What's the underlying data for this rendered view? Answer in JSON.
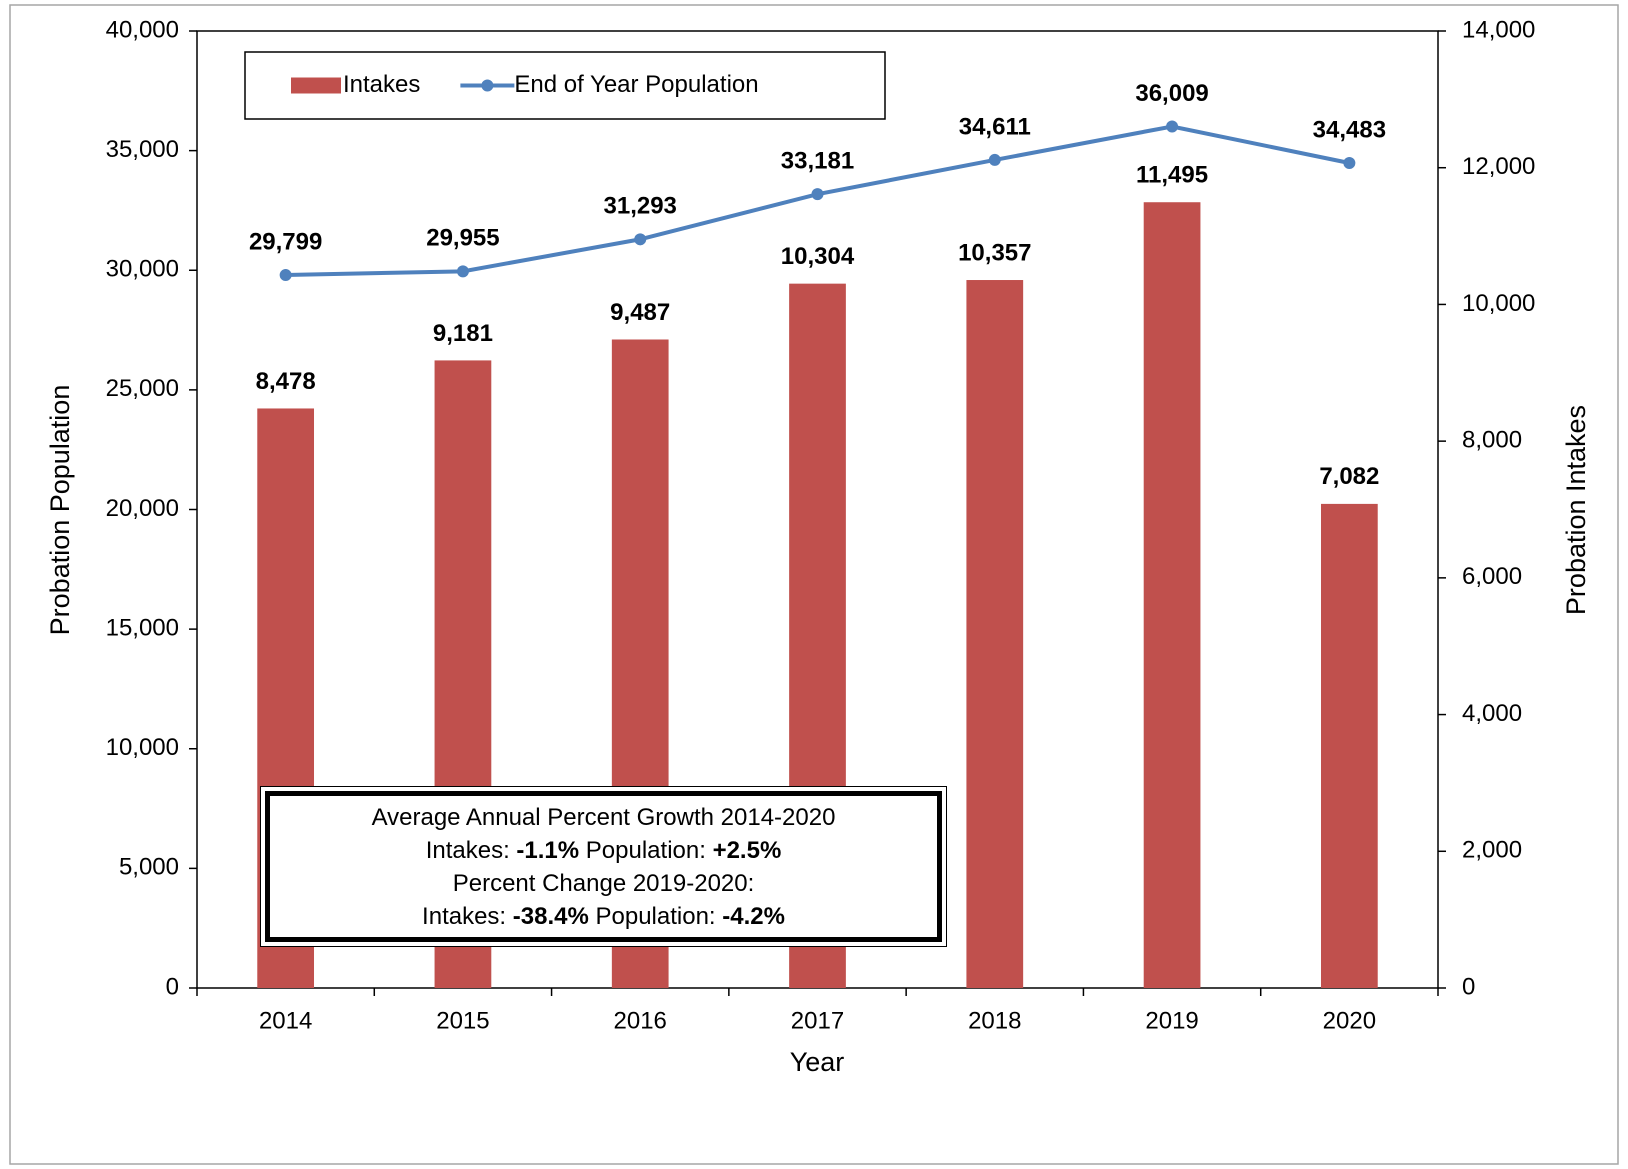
{
  "chart_data": {
    "type": "bar",
    "categories": [
      "2014",
      "2015",
      "2016",
      "2017",
      "2018",
      "2019",
      "2020"
    ],
    "series": [
      {
        "name": "Intakes",
        "type": "bar",
        "color": "#c0504d",
        "axis": "y2",
        "values": [
          8478,
          9181,
          9487,
          10304,
          10357,
          11495,
          7082
        ],
        "value_labels": [
          "8,478",
          "9,181",
          "9,487",
          "10,304",
          "10,357",
          "11,495",
          "7,082"
        ]
      },
      {
        "name": "End of Year Population",
        "type": "line",
        "color": "#4f81bd",
        "values": [
          29799,
          29955,
          31293,
          33181,
          34611,
          36009,
          34483
        ],
        "value_labels": [
          "29,799",
          "29,955",
          "31,293",
          "33,181",
          "34,611",
          "36,009",
          "34,483"
        ]
      }
    ],
    "xlabel": "Year",
    "ylabel": "Probation Population",
    "y2label": "Probation Intakes",
    "ylim": [
      0,
      40000
    ],
    "yticks": [
      0,
      {
        "value": 5000,
        "label": "5,000"
      },
      {
        "value": 10000,
        "label": "10,000"
      },
      {
        "value": 15000,
        "label": "15,000"
      },
      {
        "value": 20000,
        "label": "20,000"
      },
      {
        "value": 25000,
        "label": "25,000"
      },
      {
        "value": 30000,
        "label": "30,000"
      },
      {
        "value": 35000,
        "label": "35,000"
      },
      {
        "value": 40000,
        "label": "40,000"
      }
    ],
    "y2lim": [
      0,
      14000
    ],
    "y2ticks": [
      0,
      {
        "value": 2000,
        "label": "2,000"
      },
      {
        "value": 4000,
        "label": "4,000"
      },
      {
        "value": 6000,
        "label": "6,000"
      },
      {
        "value": 8000,
        "label": "8,000"
      },
      {
        "value": 10000,
        "label": "10,000"
      },
      {
        "value": 12000,
        "label": "12,000"
      },
      {
        "value": 14000,
        "label": "14,000"
      }
    ],
    "grid": false,
    "legend": "top-left",
    "annotation": {
      "lines": [
        [
          {
            "text": "Average Annual Percent Growth 2014-2020"
          }
        ],
        [
          {
            "text": "Intakes:"
          },
          {
            "text": "-1.1%",
            "bold": true
          },
          {
            "text": "Population:"
          },
          {
            "text": "+2.5%",
            "bold": true
          }
        ],
        [
          {
            "text": "Percent Change 2019-2020:"
          }
        ],
        [
          {
            "text": "Intakes:"
          },
          {
            "text": "-38.4%",
            "bold": true
          },
          {
            "text": "Population:"
          },
          {
            "text": "-4.2%",
            "bold": true
          }
        ]
      ]
    }
  }
}
